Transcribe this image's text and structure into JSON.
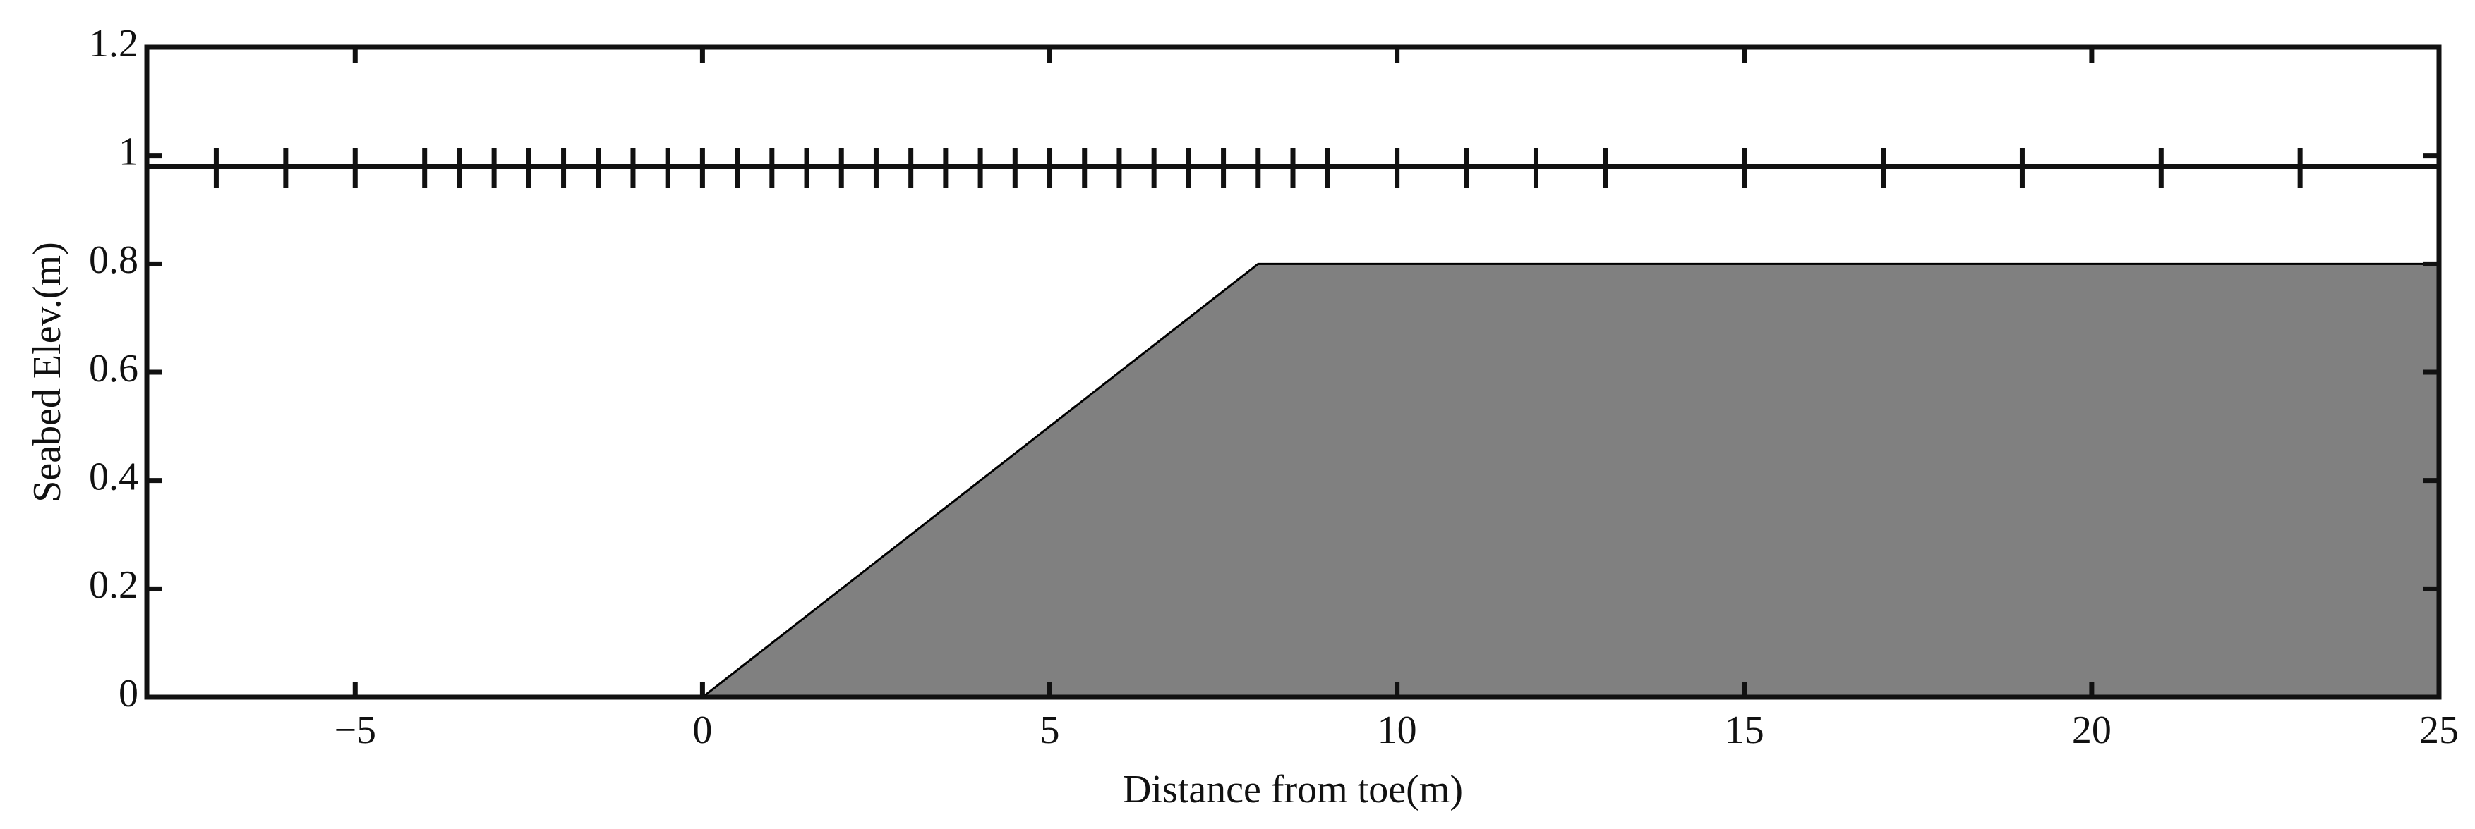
{
  "chart_data": {
    "type": "area",
    "xlabel": "Distance from toe(m)",
    "ylabel": "Seabed Elev.(m)",
    "x": [
      -8,
      0,
      8,
      25
    ],
    "values": [
      0,
      0,
      0.8,
      0.8
    ],
    "color": "#808080",
    "water_level": 0.98,
    "gauges_x": [
      -8,
      -7,
      -6,
      -5,
      -4,
      -3.5,
      -3,
      -2.5,
      -2,
      -1.5,
      -1,
      -0.5,
      0,
      0.5,
      1,
      1.5,
      2,
      2.5,
      3,
      3.5,
      4,
      4.5,
      5,
      5.5,
      6,
      6.5,
      7,
      7.5,
      8,
      8.5,
      9,
      10,
      11,
      12,
      13,
      15,
      17,
      19,
      21,
      23
    ],
    "xlim": [
      -8,
      25
    ],
    "ylim": [
      0,
      1.2
    ],
    "xticks": [
      {
        "value": -5,
        "label": "−5"
      },
      0,
      5,
      10,
      15,
      20,
      25
    ],
    "yticks": [
      0,
      0.2,
      0.4,
      0.6,
      0.8,
      1,
      1.2
    ]
  }
}
